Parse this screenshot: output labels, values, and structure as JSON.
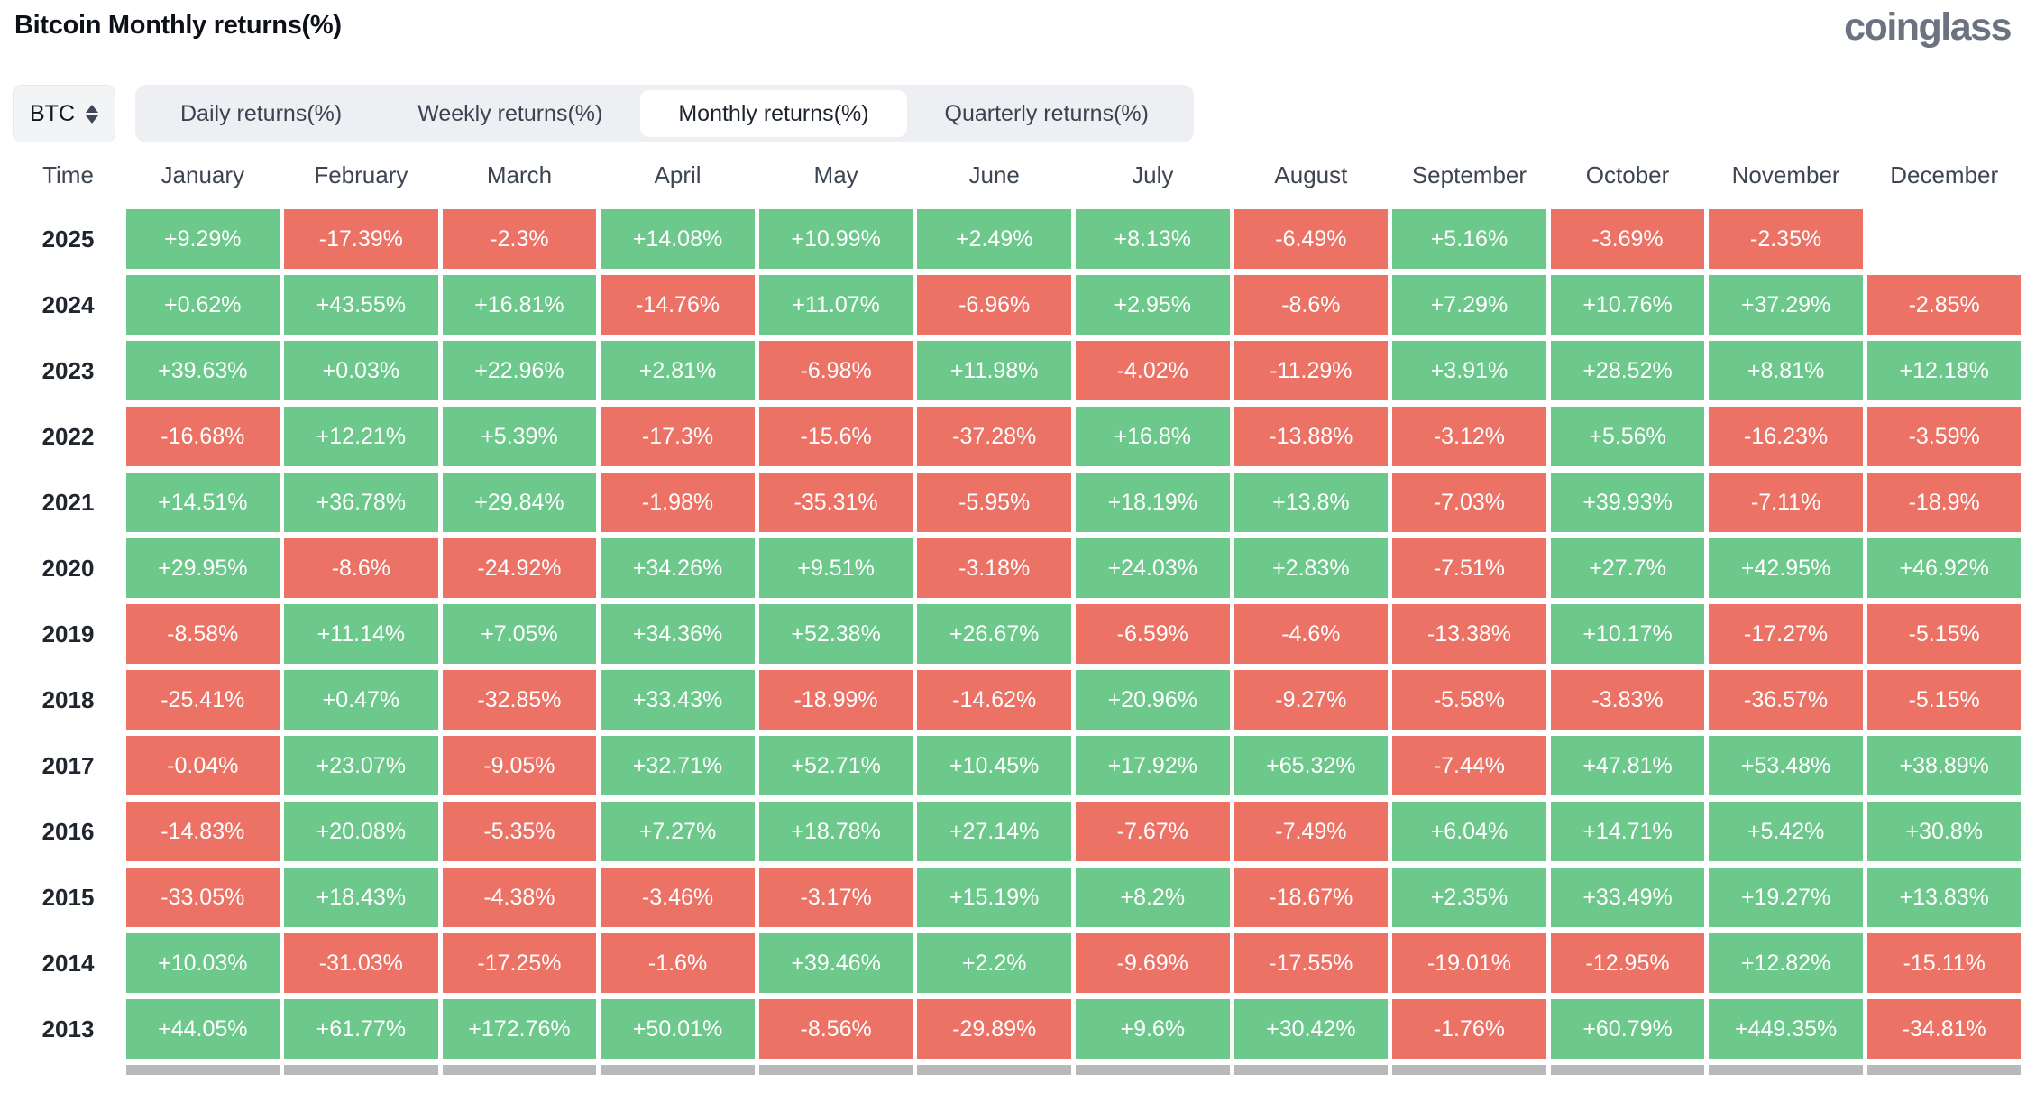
{
  "header": {
    "title": "Bitcoin Monthly returns(%)",
    "logo": "coinglass"
  },
  "controls": {
    "symbol_select": {
      "value": "BTC"
    },
    "tabs": [
      {
        "label": "Daily returns(%)",
        "active": false
      },
      {
        "label": "Weekly returns(%)",
        "active": false
      },
      {
        "label": "Monthly returns(%)",
        "active": true
      },
      {
        "label": "Quarterly returns(%)",
        "active": false
      }
    ]
  },
  "colors": {
    "positive": "#6dc88c",
    "negative": "#ec7266",
    "partial_row_gray": "#b9b9b9"
  },
  "chart_data": {
    "type": "heatmap",
    "title": "Bitcoin Monthly returns(%)",
    "columns": [
      "Time",
      "January",
      "February",
      "March",
      "April",
      "May",
      "June",
      "July",
      "August",
      "September",
      "October",
      "November",
      "December"
    ],
    "rows": [
      {
        "year": "2025",
        "values": [
          "+9.29%",
          "-17.39%",
          "-2.3%",
          "+14.08%",
          "+10.99%",
          "+2.49%",
          "+8.13%",
          "-6.49%",
          "+5.16%",
          "-3.69%",
          "-2.35%",
          null
        ]
      },
      {
        "year": "2024",
        "values": [
          "+0.62%",
          "+43.55%",
          "+16.81%",
          "-14.76%",
          "+11.07%",
          "-6.96%",
          "+2.95%",
          "-8.6%",
          "+7.29%",
          "+10.76%",
          "+37.29%",
          "-2.85%"
        ]
      },
      {
        "year": "2023",
        "values": [
          "+39.63%",
          "+0.03%",
          "+22.96%",
          "+2.81%",
          "-6.98%",
          "+11.98%",
          "-4.02%",
          "-11.29%",
          "+3.91%",
          "+28.52%",
          "+8.81%",
          "+12.18%"
        ]
      },
      {
        "year": "2022",
        "values": [
          "-16.68%",
          "+12.21%",
          "+5.39%",
          "-17.3%",
          "-15.6%",
          "-37.28%",
          "+16.8%",
          "-13.88%",
          "-3.12%",
          "+5.56%",
          "-16.23%",
          "-3.59%"
        ]
      },
      {
        "year": "2021",
        "values": [
          "+14.51%",
          "+36.78%",
          "+29.84%",
          "-1.98%",
          "-35.31%",
          "-5.95%",
          "+18.19%",
          "+13.8%",
          "-7.03%",
          "+39.93%",
          "-7.11%",
          "-18.9%"
        ]
      },
      {
        "year": "2020",
        "values": [
          "+29.95%",
          "-8.6%",
          "-24.92%",
          "+34.26%",
          "+9.51%",
          "-3.18%",
          "+24.03%",
          "+2.83%",
          "-7.51%",
          "+27.7%",
          "+42.95%",
          "+46.92%"
        ]
      },
      {
        "year": "2019",
        "values": [
          "-8.58%",
          "+11.14%",
          "+7.05%",
          "+34.36%",
          "+52.38%",
          "+26.67%",
          "-6.59%",
          "-4.6%",
          "-13.38%",
          "+10.17%",
          "-17.27%",
          "-5.15%"
        ]
      },
      {
        "year": "2018",
        "values": [
          "-25.41%",
          "+0.47%",
          "-32.85%",
          "+33.43%",
          "-18.99%",
          "-14.62%",
          "+20.96%",
          "-9.27%",
          "-5.58%",
          "-3.83%",
          "-36.57%",
          "-5.15%"
        ]
      },
      {
        "year": "2017",
        "values": [
          "-0.04%",
          "+23.07%",
          "-9.05%",
          "+32.71%",
          "+52.71%",
          "+10.45%",
          "+17.92%",
          "+65.32%",
          "-7.44%",
          "+47.81%",
          "+53.48%",
          "+38.89%"
        ]
      },
      {
        "year": "2016",
        "values": [
          "-14.83%",
          "+20.08%",
          "-5.35%",
          "+7.27%",
          "+18.78%",
          "+27.14%",
          "-7.67%",
          "-7.49%",
          "+6.04%",
          "+14.71%",
          "+5.42%",
          "+30.8%"
        ]
      },
      {
        "year": "2015",
        "values": [
          "-33.05%",
          "+18.43%",
          "-4.38%",
          "-3.46%",
          "-3.17%",
          "+15.19%",
          "+8.2%",
          "-18.67%",
          "+2.35%",
          "+33.49%",
          "+19.27%",
          "+13.83%"
        ]
      },
      {
        "year": "2014",
        "values": [
          "+10.03%",
          "-31.03%",
          "-17.25%",
          "-1.6%",
          "+39.46%",
          "+2.2%",
          "-9.69%",
          "-17.55%",
          "-19.01%",
          "-12.95%",
          "+12.82%",
          "-15.11%"
        ]
      },
      {
        "year": "2013",
        "values": [
          "+44.05%",
          "+61.77%",
          "+172.76%",
          "+50.01%",
          "-8.56%",
          "-29.89%",
          "+9.6%",
          "+30.42%",
          "-1.76%",
          "+60.79%",
          "+449.35%",
          "-34.81%"
        ]
      }
    ],
    "truncated_next_row": true,
    "legend": "green = positive monthly return, red = negative monthly return"
  }
}
